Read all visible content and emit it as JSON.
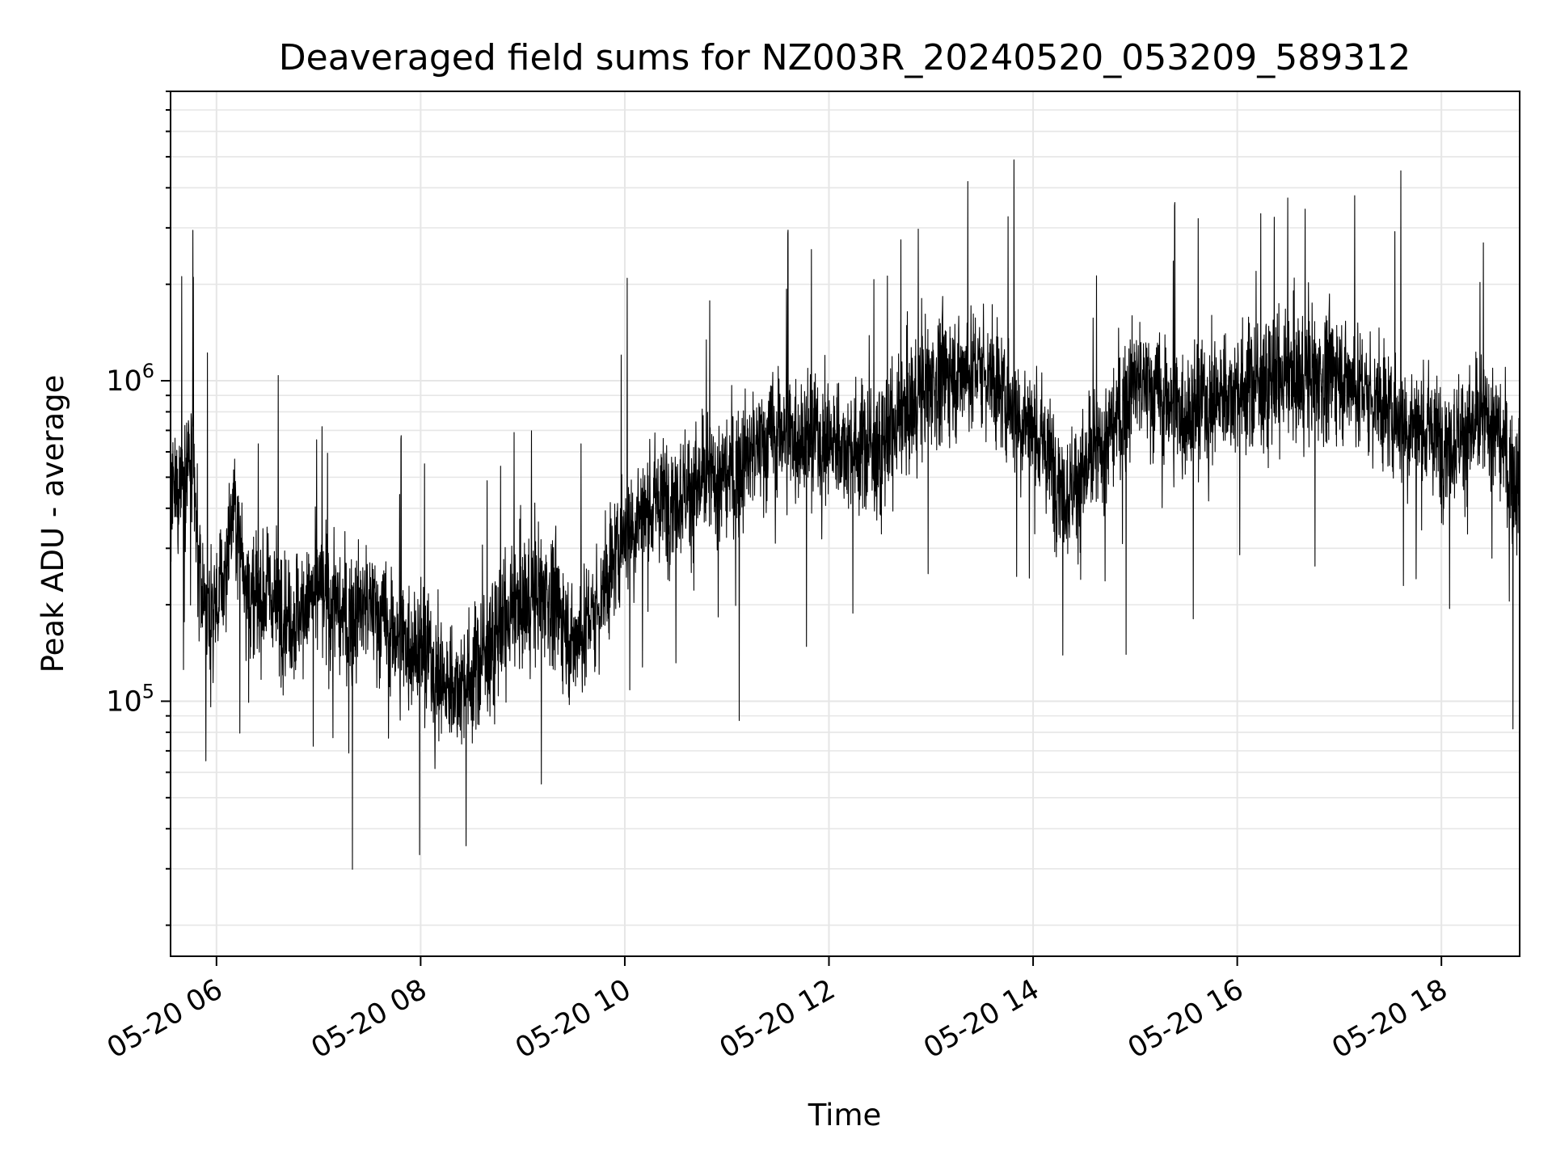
{
  "chart_data": {
    "type": "line",
    "title": "Deaveraged field sums for NZ003R_20240520_053209_589312",
    "xlabel": "Time",
    "ylabel": "Peak ADU - average",
    "yscale": "log",
    "xlim": [
      "2024-05-20 05:33",
      "2024-05-20 18:46"
    ],
    "ylim": [
      16000,
      8000000
    ],
    "x_ticks": [
      {
        "time": "2024-05-20 06:00",
        "label": "05-20 06"
      },
      {
        "time": "2024-05-20 08:00",
        "label": "05-20 08"
      },
      {
        "time": "2024-05-20 10:00",
        "label": "05-20 10"
      },
      {
        "time": "2024-05-20 12:00",
        "label": "05-20 12"
      },
      {
        "time": "2024-05-20 14:00",
        "label": "05-20 14"
      },
      {
        "time": "2024-05-20 16:00",
        "label": "05-20 16"
      },
      {
        "time": "2024-05-20 18:00",
        "label": "05-20 18"
      }
    ],
    "y_ticks": [
      {
        "value": 100000,
        "base": "10",
        "exp": "5"
      },
      {
        "value": 1000000,
        "base": "10",
        "exp": "6"
      }
    ],
    "grid": true,
    "line_color": "#000000",
    "grid_color": "#e6e6e6",
    "series": [
      {
        "x": [
          "2024-05-20 05:33",
          "2024-05-20 05:40",
          "2024-05-20 05:45",
          "2024-05-20 05:50",
          "2024-05-20 05:55",
          "2024-05-20 06:00",
          "2024-05-20 06:05",
          "2024-05-20 06:10",
          "2024-05-20 06:15",
          "2024-05-20 06:20",
          "2024-05-20 06:30",
          "2024-05-20 06:45",
          "2024-05-20 07:00",
          "2024-05-20 07:15",
          "2024-05-20 07:30",
          "2024-05-20 07:45",
          "2024-05-20 08:00",
          "2024-05-20 08:15",
          "2024-05-20 08:30",
          "2024-05-20 08:45",
          "2024-05-20 09:00",
          "2024-05-20 09:15",
          "2024-05-20 09:30",
          "2024-05-20 09:45",
          "2024-05-20 10:00",
          "2024-05-20 10:30",
          "2024-05-20 11:00",
          "2024-05-20 11:30",
          "2024-05-20 12:00",
          "2024-05-20 12:30",
          "2024-05-20 13:00",
          "2024-05-20 13:30",
          "2024-05-20 14:00",
          "2024-05-20 14:20",
          "2024-05-20 14:40",
          "2024-05-20 15:00",
          "2024-05-20 15:30",
          "2024-05-20 16:00",
          "2024-05-20 16:30",
          "2024-05-20 17:00",
          "2024-05-20 17:30",
          "2024-05-20 18:00",
          "2024-05-20 18:30",
          "2024-05-20 18:46"
        ],
        "y": [
          400000,
          500000,
          550000,
          250000,
          180000,
          200000,
          250000,
          400000,
          300000,
          200000,
          220000,
          180000,
          220000,
          180000,
          200000,
          160000,
          150000,
          110000,
          120000,
          160000,
          200000,
          220000,
          150000,
          200000,
          350000,
          450000,
          500000,
          700000,
          650000,
          600000,
          1000000,
          1100000,
          700000,
          450000,
          600000,
          1000000,
          800000,
          950000,
          1000000,
          1050000,
          800000,
          650000,
          750000,
          450000
        ]
      }
    ]
  }
}
